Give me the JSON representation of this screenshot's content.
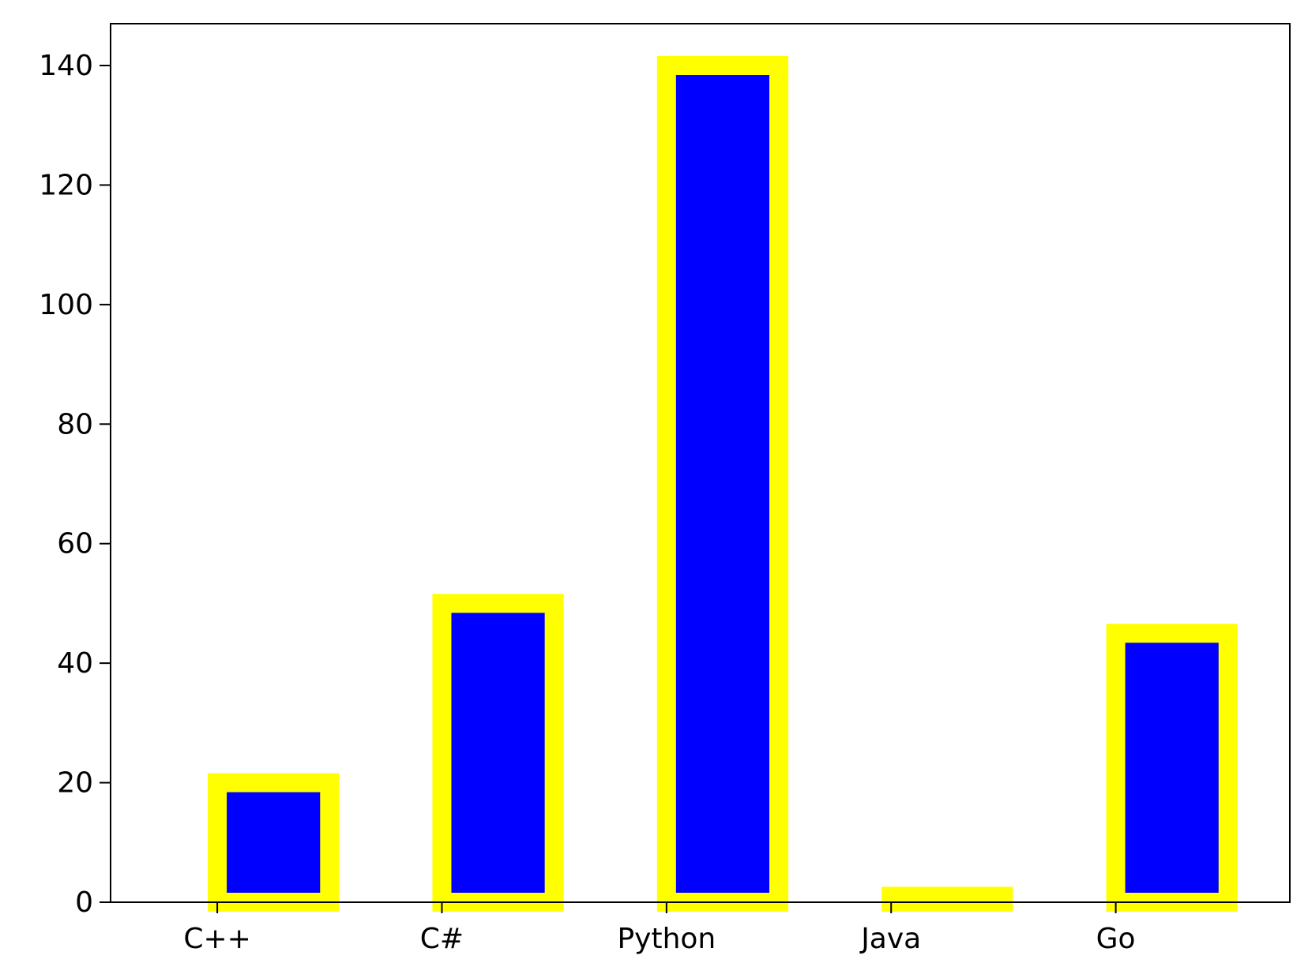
{
  "chart_data": {
    "type": "bar",
    "title": "",
    "xlabel": "",
    "ylabel": "",
    "categories": [
      "C++",
      "C#",
      "Python",
      "Java",
      "Go"
    ],
    "values": [
      20,
      50,
      140,
      1,
      45
    ],
    "ylim": [
      0,
      147
    ],
    "yticks": [
      0,
      20,
      40,
      60,
      80,
      100,
      120,
      140
    ],
    "grid": false,
    "legend": "none",
    "colors": {
      "bar_fill": "#0000ff",
      "bar_edge": "#ffff00",
      "axes": "#000000",
      "background": "#ffffff"
    }
  }
}
